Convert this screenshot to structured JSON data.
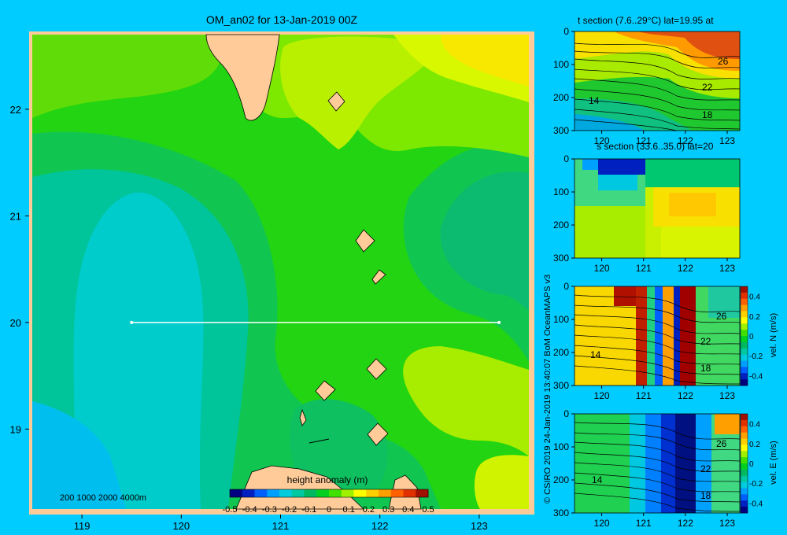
{
  "main_map": {
    "title": "OM_an02 for 13-Jan-2019 00Z",
    "x_ticks": [
      "119",
      "120",
      "121",
      "122",
      "123"
    ],
    "y_ticks": [
      "22",
      "21",
      "20",
      "19"
    ],
    "depth_legend": "200 1000 2000 4000m",
    "colorbar_title": "height anomaly (m)",
    "colorbar_ticks": [
      "-0.5",
      "-0.4",
      "-0.3",
      "-0.2",
      "-0.1",
      "0",
      "0.1",
      "0.2",
      "0.3",
      "0.4",
      "0.5"
    ],
    "section_line": {
      "lat": 20,
      "lon_start": 119.5,
      "lon_end": 123.2
    }
  },
  "credit": "© CSIRO 2019  24-Jan-2019 13:40:07 BoM OceanMAPS v3",
  "panels": [
    {
      "title": "t section (7.6..29°C) lat=19.95 at",
      "contour_labels": [
        "26",
        "22",
        "14",
        "18"
      ]
    },
    {
      "title": "s section (33.6..35.0) lat=20",
      "contour_labels": []
    },
    {
      "title": "",
      "colorbar_label": "vel. N (m/s)",
      "contour_labels": [
        "26",
        "22",
        "14",
        "18"
      ]
    },
    {
      "title": "",
      "colorbar_label": "vel. E (m/s)",
      "contour_labels": [
        "26",
        "22",
        "14",
        "18"
      ]
    }
  ],
  "panel_x_ticks": [
    "120",
    "121",
    "122",
    "123"
  ],
  "panel_y_ticks": [
    "0",
    "100",
    "200",
    "300"
  ],
  "vel_ticks": [
    "0.4",
    "0.2",
    "0",
    "-0.2",
    "-0.4"
  ],
  "chart_data": {
    "type": "heatmap",
    "title": "OM_an02 for 13-Jan-2019 00Z",
    "variable": "height anomaly (m)",
    "xlim": [
      118.5,
      123.5
    ],
    "ylim": [
      18.25,
      22.7
    ],
    "colorbar_range": [
      -0.5,
      0.5
    ],
    "section": {
      "lat": 20,
      "lon_range": [
        119.5,
        123.2
      ]
    },
    "colors": {
      "background": "#00CCFF",
      "land": "#FFCC99",
      "colormap": [
        "#000080",
        "#0020C0",
        "#0060FF",
        "#00A0FF",
        "#00CCDD",
        "#00C8A0",
        "#00B860",
        "#00D020",
        "#40E000",
        "#A0F000",
        "#FFFF00",
        "#FFD000",
        "#FFA000",
        "#FF6000",
        "#E03000",
        "#A01000"
      ]
    }
  }
}
